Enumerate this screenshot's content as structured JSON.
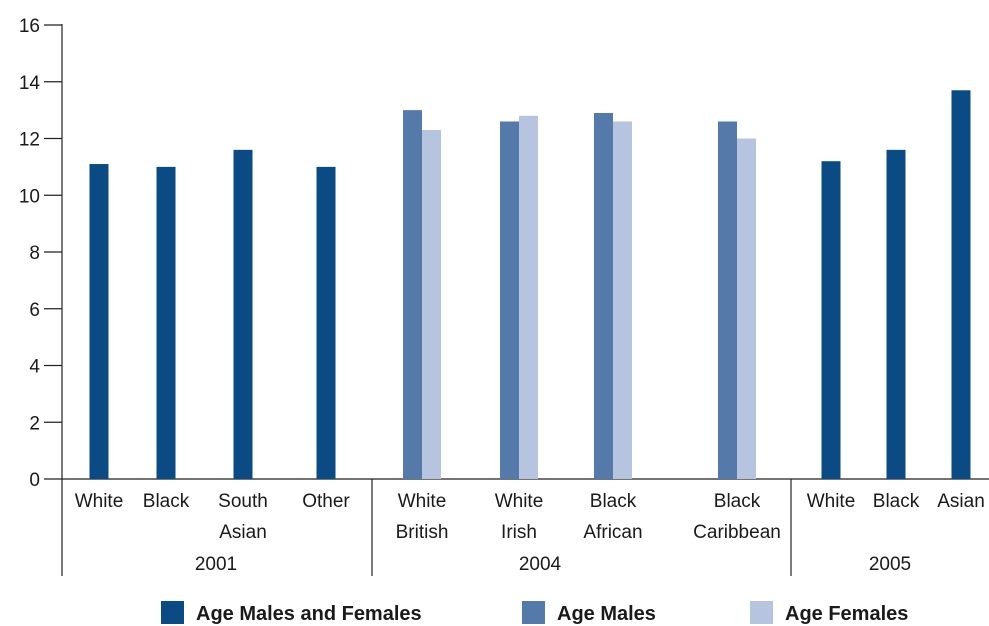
{
  "chart_data": {
    "type": "bar",
    "ylim": [
      0,
      16
    ],
    "yticks": [
      0,
      2,
      4,
      6,
      8,
      10,
      12,
      14,
      16
    ],
    "grid": false,
    "legend_position": "bottom",
    "groups": [
      {
        "label": "2001",
        "categories": [
          {
            "label": [
              "White"
            ],
            "values": {
              "both": 11.1
            }
          },
          {
            "label": [
              "Black"
            ],
            "values": {
              "both": 11.0
            }
          },
          {
            "label": [
              "South",
              "Asian"
            ],
            "values": {
              "both": 11.6
            }
          },
          {
            "label": [
              "Other"
            ],
            "values": {
              "both": 11.0
            }
          }
        ]
      },
      {
        "label": "2004",
        "categories": [
          {
            "label": [
              "White",
              "British"
            ],
            "values": {
              "males": 13.0,
              "females": 12.3
            }
          },
          {
            "label": [
              "White",
              "Irish"
            ],
            "values": {
              "males": 12.6,
              "females": 12.8
            }
          },
          {
            "label": [
              "Black",
              "African"
            ],
            "values": {
              "males": 12.9,
              "females": 12.6
            }
          },
          {
            "label": [
              "Black",
              "Caribbean"
            ],
            "values": {
              "males": 12.6,
              "females": 12.0
            }
          }
        ]
      },
      {
        "label": "2005",
        "categories": [
          {
            "label": [
              "White"
            ],
            "values": {
              "both": 11.2
            }
          },
          {
            "label": [
              "Black"
            ],
            "values": {
              "both": 11.6
            }
          },
          {
            "label": [
              "Asian"
            ],
            "values": {
              "both": 13.7
            }
          }
        ]
      }
    ],
    "series": [
      {
        "key": "both",
        "name": "Age Males and Females",
        "color": "#0b4a82"
      },
      {
        "key": "males",
        "name": "Age Males",
        "color": "#5579a8"
      },
      {
        "key": "females",
        "name": "Age Females",
        "color": "#b7c4df"
      }
    ]
  }
}
